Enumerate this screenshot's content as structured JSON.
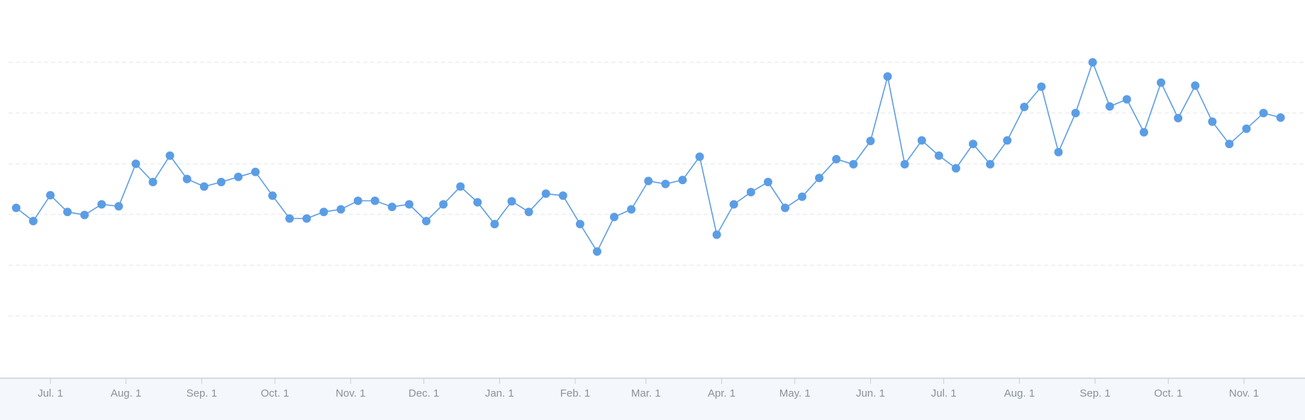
{
  "chart_data": {
    "type": "line",
    "title": "",
    "xlabel": "",
    "ylabel": "",
    "grid": true,
    "legend": "none",
    "colors": {
      "series": "#5b9de5"
    },
    "x_ticks": [
      {
        "label": "Jul. 1",
        "date": "2023-07-01"
      },
      {
        "label": "Aug. 1",
        "date": "2023-08-01"
      },
      {
        "label": "Sep. 1",
        "date": "2023-09-01"
      },
      {
        "label": "Oct. 1",
        "date": "2023-10-01"
      },
      {
        "label": "Nov. 1",
        "date": "2023-11-01"
      },
      {
        "label": "Dec. 1",
        "date": "2023-12-01"
      },
      {
        "label": "Jan. 1",
        "date": "2024-01-01"
      },
      {
        "label": "Feb. 1",
        "date": "2024-02-01"
      },
      {
        "label": "Mar. 1",
        "date": "2024-03-01"
      },
      {
        "label": "Apr. 1",
        "date": "2024-04-01"
      },
      {
        "label": "May. 1",
        "date": "2024-05-01"
      },
      {
        "label": "Jun. 1",
        "date": "2024-06-01"
      },
      {
        "label": "Jul. 1",
        "date": "2024-07-01"
      },
      {
        "label": "Aug. 1",
        "date": "2024-08-01"
      },
      {
        "label": "Sep. 1",
        "date": "2024-09-01"
      },
      {
        "label": "Oct. 1",
        "date": "2024-10-01"
      },
      {
        "label": "Nov. 1",
        "date": "2024-11-01"
      }
    ],
    "ylim": [
      0,
      5
    ],
    "series": [
      {
        "x": [
          "2023-06-17",
          "2023-06-24",
          "2023-07-01",
          "2023-07-08",
          "2023-07-15",
          "2023-07-22",
          "2023-07-29",
          "2023-08-05",
          "2023-08-12",
          "2023-08-19",
          "2023-08-26",
          "2023-09-02",
          "2023-09-09",
          "2023-09-16",
          "2023-09-23",
          "2023-09-30",
          "2023-10-07",
          "2023-10-14",
          "2023-10-21",
          "2023-10-28",
          "2023-11-04",
          "2023-11-11",
          "2023-11-18",
          "2023-11-25",
          "2023-12-02",
          "2023-12-09",
          "2023-12-16",
          "2023-12-23",
          "2023-12-30",
          "2024-01-06",
          "2024-01-13",
          "2024-01-20",
          "2024-01-27",
          "2024-02-03",
          "2024-02-10",
          "2024-02-17",
          "2024-02-24",
          "2024-03-02",
          "2024-03-09",
          "2024-03-16",
          "2024-03-23",
          "2024-03-30",
          "2024-04-06",
          "2024-04-13",
          "2024-04-20",
          "2024-04-27",
          "2024-05-04",
          "2024-05-11",
          "2024-05-18",
          "2024-05-25",
          "2024-06-01",
          "2024-06-08",
          "2024-06-15",
          "2024-06-22",
          "2024-06-29",
          "2024-07-06",
          "2024-07-13",
          "2024-07-20",
          "2024-07-27",
          "2024-08-03",
          "2024-08-10",
          "2024-08-17",
          "2024-08-24",
          "2024-08-31",
          "2024-09-07",
          "2024-09-14",
          "2024-09-21",
          "2024-09-28",
          "2024-10-05",
          "2024-10-12",
          "2024-10-19",
          "2024-10-26",
          "2024-11-02",
          "2024-11-09",
          "2024-11-16"
        ],
        "values": [
          2.13,
          1.87,
          2.38,
          2.05,
          1.99,
          2.2,
          2.16,
          3.0,
          2.64,
          3.16,
          2.7,
          2.55,
          2.64,
          2.74,
          2.84,
          2.37,
          1.92,
          1.92,
          2.05,
          2.1,
          2.27,
          2.27,
          2.15,
          2.2,
          1.87,
          2.2,
          2.55,
          2.24,
          1.81,
          2.26,
          2.05,
          2.41,
          2.37,
          1.81,
          1.27,
          1.95,
          2.1,
          2.66,
          2.6,
          2.68,
          3.14,
          1.6,
          2.2,
          2.44,
          2.64,
          2.13,
          2.35,
          2.72,
          3.09,
          2.99,
          3.45,
          4.72,
          2.99,
          3.46,
          3.16,
          2.91,
          3.39,
          2.99,
          3.46,
          4.12,
          4.52,
          3.23,
          4.0,
          5.0,
          4.13,
          4.27,
          3.62,
          4.6,
          3.9,
          4.54,
          3.83,
          3.39,
          3.69,
          4.0,
          3.91
        ]
      }
    ]
  }
}
